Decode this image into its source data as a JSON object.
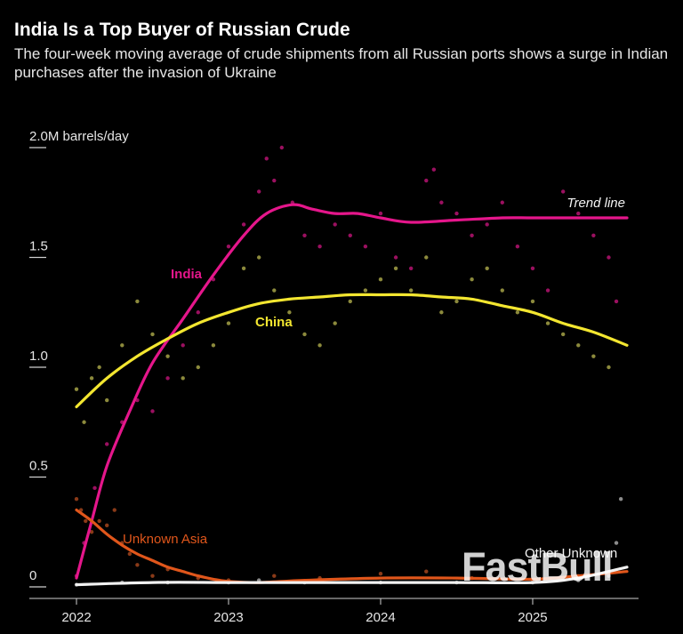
{
  "header": {
    "title": "India Is a Top Buyer of Russian Crude",
    "subtitle": "The four-week moving average of crude shipments from all Russian ports shows a surge in Indian purchases after the invasion of Ukraine"
  },
  "watermark": "FastBull",
  "chart_data": {
    "type": "scatter",
    "ylim": [
      0,
      2.0
    ],
    "xlim": [
      2022.0,
      2025.62
    ],
    "y_ticks": [
      {
        "value": 2.0,
        "label": "2.0M barrels/day"
      },
      {
        "value": 1.5,
        "label": "1.5"
      },
      {
        "value": 1.0,
        "label": "1.0"
      },
      {
        "value": 0.5,
        "label": "0.5"
      },
      {
        "value": 0,
        "label": "0"
      }
    ],
    "x_ticks": [
      {
        "value": 2022,
        "label": "2022"
      },
      {
        "value": 2023,
        "label": "2023"
      },
      {
        "value": 2024,
        "label": "2024"
      },
      {
        "value": 2025,
        "label": "2025"
      }
    ],
    "grid": false,
    "trend_line_label": "Trend line",
    "colors": {
      "India": "#e5168b",
      "India_points": "#9b1060",
      "China": "#f3e630",
      "China_points": "#8c8a3c",
      "Unknown Asia": "#e0561b",
      "Unknown Asia_points": "#8a3a18",
      "Other Unknown": "#f2f2f2",
      "Other Unknown_points": "#8c8c8c"
    },
    "series": [
      {
        "name": "India",
        "trend_x": [
          2022.0,
          2022.1,
          2022.2,
          2022.35,
          2022.5,
          2022.7,
          2022.9,
          2023.1,
          2023.25,
          2023.42,
          2023.55,
          2023.7,
          2023.85,
          2024.0,
          2024.2,
          2024.5,
          2024.8,
          2025.0,
          2025.3,
          2025.62
        ],
        "trend_y": [
          0.04,
          0.3,
          0.55,
          0.8,
          1.02,
          1.22,
          1.42,
          1.6,
          1.7,
          1.74,
          1.72,
          1.7,
          1.7,
          1.68,
          1.66,
          1.67,
          1.68,
          1.68,
          1.68,
          1.68
        ],
        "points_x": [
          2022.0,
          2022.05,
          2022.12,
          2022.2,
          2022.3,
          2022.4,
          2022.5,
          2022.6,
          2022.7,
          2022.8,
          2022.9,
          2023.0,
          2023.1,
          2023.2,
          2023.25,
          2023.3,
          2023.35,
          2023.42,
          2023.5,
          2023.6,
          2023.7,
          2023.8,
          2023.9,
          2024.0,
          2024.1,
          2024.2,
          2024.3,
          2024.35,
          2024.4,
          2024.5,
          2024.6,
          2024.7,
          2024.8,
          2024.9,
          2025.0,
          2025.1,
          2025.2,
          2025.3,
          2025.4,
          2025.5,
          2025.55
        ],
        "points_y": [
          0.05,
          0.2,
          0.45,
          0.65,
          0.75,
          0.85,
          0.8,
          0.95,
          1.1,
          1.25,
          1.4,
          1.55,
          1.65,
          1.8,
          1.95,
          1.85,
          2.0,
          1.75,
          1.6,
          1.55,
          1.65,
          1.6,
          1.55,
          1.7,
          1.5,
          1.45,
          1.85,
          1.9,
          1.75,
          1.7,
          1.6,
          1.65,
          1.75,
          1.55,
          1.45,
          1.35,
          1.8,
          1.7,
          1.6,
          1.5,
          1.3
        ]
      },
      {
        "name": "China",
        "trend_x": [
          2022.0,
          2022.2,
          2022.4,
          2022.6,
          2022.8,
          2023.0,
          2023.2,
          2023.4,
          2023.6,
          2023.8,
          2024.0,
          2024.2,
          2024.4,
          2024.6,
          2024.8,
          2025.0,
          2025.2,
          2025.4,
          2025.62
        ],
        "trend_y": [
          0.82,
          0.95,
          1.05,
          1.13,
          1.2,
          1.25,
          1.29,
          1.31,
          1.32,
          1.33,
          1.33,
          1.33,
          1.32,
          1.31,
          1.28,
          1.25,
          1.2,
          1.16,
          1.1
        ],
        "points_x": [
          2022.0,
          2022.05,
          2022.1,
          2022.15,
          2022.2,
          2022.3,
          2022.4,
          2022.5,
          2022.6,
          2022.7,
          2022.8,
          2022.9,
          2023.0,
          2023.1,
          2023.2,
          2023.3,
          2023.4,
          2023.5,
          2023.6,
          2023.7,
          2023.8,
          2023.9,
          2024.0,
          2024.1,
          2024.2,
          2024.3,
          2024.4,
          2024.5,
          2024.6,
          2024.7,
          2024.8,
          2024.9,
          2025.0,
          2025.1,
          2025.2,
          2025.3,
          2025.4,
          2025.5
        ],
        "points_y": [
          0.9,
          0.75,
          0.95,
          1.0,
          0.85,
          1.1,
          1.3,
          1.15,
          1.05,
          0.95,
          1.0,
          1.1,
          1.2,
          1.45,
          1.5,
          1.35,
          1.25,
          1.15,
          1.1,
          1.2,
          1.3,
          1.35,
          1.4,
          1.45,
          1.35,
          1.5,
          1.25,
          1.3,
          1.4,
          1.45,
          1.35,
          1.25,
          1.3,
          1.2,
          1.15,
          1.1,
          1.05,
          1.0
        ]
      },
      {
        "name": "Unknown Asia",
        "trend_x": [
          2022.0,
          2022.1,
          2022.2,
          2022.3,
          2022.4,
          2022.5,
          2022.6,
          2022.7,
          2022.8,
          2022.9,
          2023.0,
          2023.2,
          2023.5,
          2024.0,
          2024.5,
          2025.0,
          2025.3,
          2025.62
        ],
        "trend_y": [
          0.35,
          0.3,
          0.24,
          0.19,
          0.15,
          0.12,
          0.09,
          0.07,
          0.05,
          0.035,
          0.025,
          0.02,
          0.03,
          0.04,
          0.04,
          0.035,
          0.05,
          0.07
        ],
        "points_x": [
          2022.0,
          2022.03,
          2022.06,
          2022.1,
          2022.15,
          2022.2,
          2022.25,
          2022.3,
          2022.35,
          2022.4,
          2022.5,
          2022.6,
          2022.8,
          2023.0,
          2023.3,
          2023.6,
          2024.0,
          2024.3,
          2024.6,
          2025.0,
          2025.3,
          2025.5
        ],
        "points_y": [
          0.4,
          0.35,
          0.3,
          0.25,
          0.3,
          0.28,
          0.35,
          0.2,
          0.15,
          0.1,
          0.05,
          0.08,
          0.04,
          0.03,
          0.05,
          0.04,
          0.06,
          0.07,
          0.04,
          0.03,
          0.05,
          0.06
        ]
      },
      {
        "name": "Other Unknown",
        "trend_x": [
          2022.0,
          2022.5,
          2023.0,
          2023.5,
          2024.0,
          2024.5,
          2025.0,
          2025.3,
          2025.62
        ],
        "trend_y": [
          0.01,
          0.02,
          0.02,
          0.02,
          0.02,
          0.02,
          0.02,
          0.04,
          0.09
        ],
        "points_x": [
          2022.0,
          2022.3,
          2022.6,
          2023.0,
          2023.2,
          2023.5,
          2024.0,
          2024.5,
          2025.0,
          2025.3,
          2025.5,
          2025.55,
          2025.58
        ],
        "points_y": [
          0.01,
          0.02,
          0.02,
          0.02,
          0.03,
          0.02,
          0.02,
          0.02,
          0.02,
          0.03,
          0.05,
          0.2,
          0.4
        ]
      }
    ],
    "series_labels": [
      {
        "name": "India",
        "text": "India"
      },
      {
        "name": "China",
        "text": "China"
      },
      {
        "name": "Unknown Asia",
        "text": "Unknown Asia"
      },
      {
        "name": "Other Unknown",
        "text": "Other Unknown"
      }
    ]
  }
}
